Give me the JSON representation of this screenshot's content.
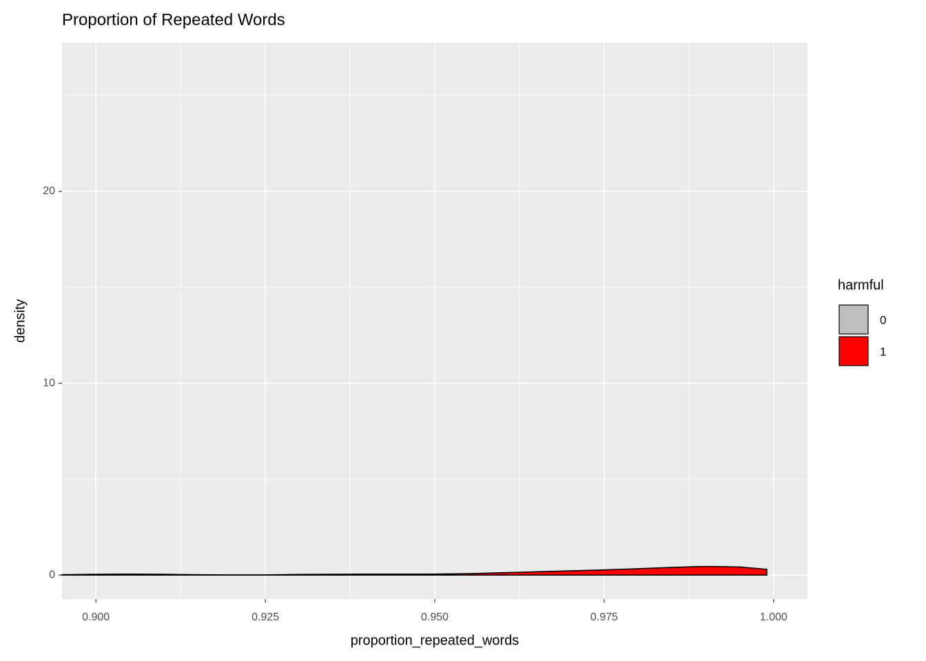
{
  "chart_data": {
    "type": "density",
    "title": "Proportion of Repeated Words",
    "x_label": "proportion_repeated_words",
    "y_label": "density",
    "legend_title": "harmful",
    "legend_position": "right",
    "grid": true,
    "xlim": [
      0.895,
      1.005
    ],
    "ylim": [
      -1.25,
      27.75
    ],
    "xticks": [
      {
        "value": 0.9,
        "label": "0.900"
      },
      {
        "value": 0.925,
        "label": "0.925"
      },
      {
        "value": 0.95,
        "label": "0.950"
      },
      {
        "value": 0.975,
        "label": "0.975"
      },
      {
        "value": 1.0,
        "label": "1.000"
      }
    ],
    "yticks": [
      0,
      10,
      20
    ],
    "series": [
      {
        "name": "0",
        "color": "#bebebe",
        "x": [
          0.895,
          0.9,
          0.905,
          0.91,
          0.915,
          0.92,
          0.925,
          0.93,
          0.935,
          0.94,
          0.945,
          0.95
        ],
        "values": [
          0.02,
          0.04,
          0.05,
          0.04,
          0.02,
          0.01,
          0.01,
          0.03,
          0.04,
          0.05,
          0.05,
          0.05
        ]
      },
      {
        "name": "1",
        "color": "#ff0000",
        "x": [
          0.95,
          0.955,
          0.96,
          0.965,
          0.97,
          0.975,
          0.98,
          0.985,
          0.99,
          0.995,
          0.999
        ],
        "values": [
          0.05,
          0.07,
          0.12,
          0.17,
          0.22,
          0.27,
          0.33,
          0.4,
          0.45,
          0.42,
          0.3
        ]
      }
    ]
  }
}
